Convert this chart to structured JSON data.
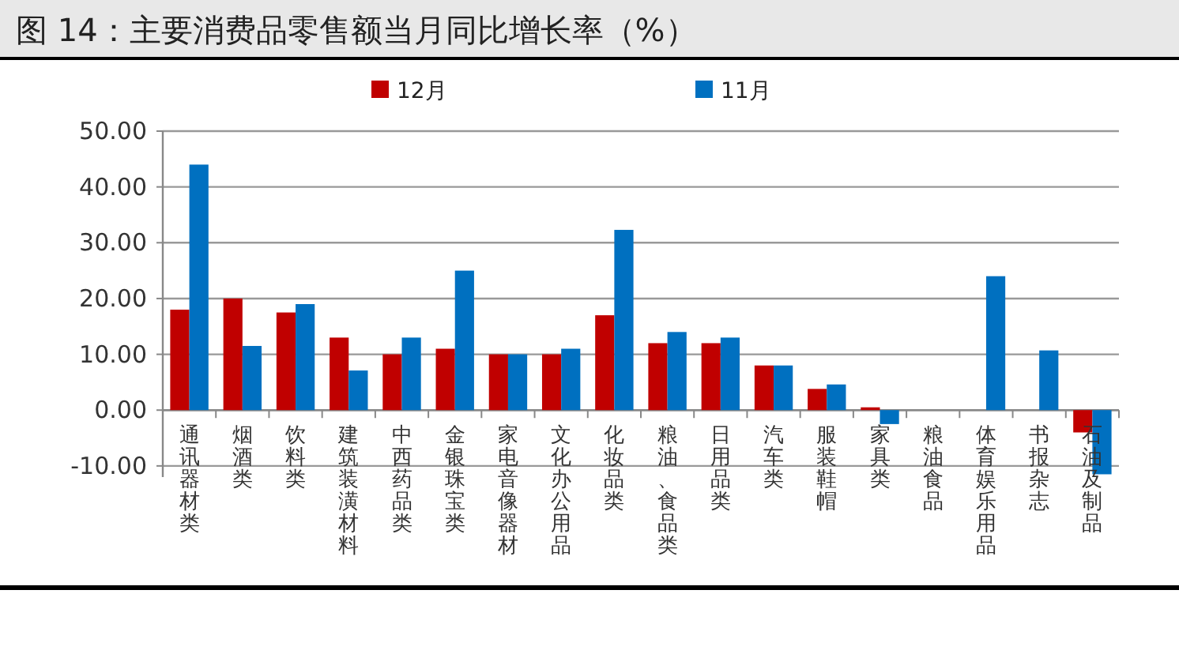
{
  "chart_data": {
    "type": "bar",
    "title": "图 14：主要消费品零售额当月同比增长率（%）",
    "categories": [
      "通讯器材类",
      "烟酒类",
      "饮料类",
      "建筑装潢材料",
      "中西药品类",
      "金银珠宝类",
      "家电音像器材",
      "文化办公用品",
      "化妆品类",
      "粮油、食品类",
      "日用品类",
      "汽车类",
      "服装鞋帽",
      "家具类",
      "粮油食品",
      "体育娱乐用品",
      "书报杂志",
      "石油及制品"
    ],
    "series": [
      {
        "name": "12月",
        "color": "#c00000",
        "values": [
          18,
          20,
          17.5,
          13,
          10,
          11,
          10,
          10,
          17,
          12,
          12,
          8,
          3.8,
          0.5,
          null,
          null,
          null,
          -4
        ]
      },
      {
        "name": "11月",
        "color": "#0070c0",
        "values": [
          44,
          11.5,
          19,
          7.1,
          13,
          25,
          10,
          11,
          32.3,
          14,
          13,
          8,
          4.6,
          -2.5,
          null,
          24,
          10.7,
          -11.5
        ]
      }
    ],
    "ylim": [
      -12,
      50
    ],
    "yticks": [
      {
        "value": -10,
        "label": "-10.00"
      },
      {
        "value": 0,
        "label": "0.00"
      },
      {
        "value": 10,
        "label": "10.00"
      },
      {
        "value": 20,
        "label": "20.00"
      },
      {
        "value": 30,
        "label": "30.00"
      },
      {
        "value": 40,
        "label": "40.00"
      },
      {
        "value": 50,
        "label": "50.00"
      }
    ],
    "grid": "y",
    "legend": "top"
  }
}
